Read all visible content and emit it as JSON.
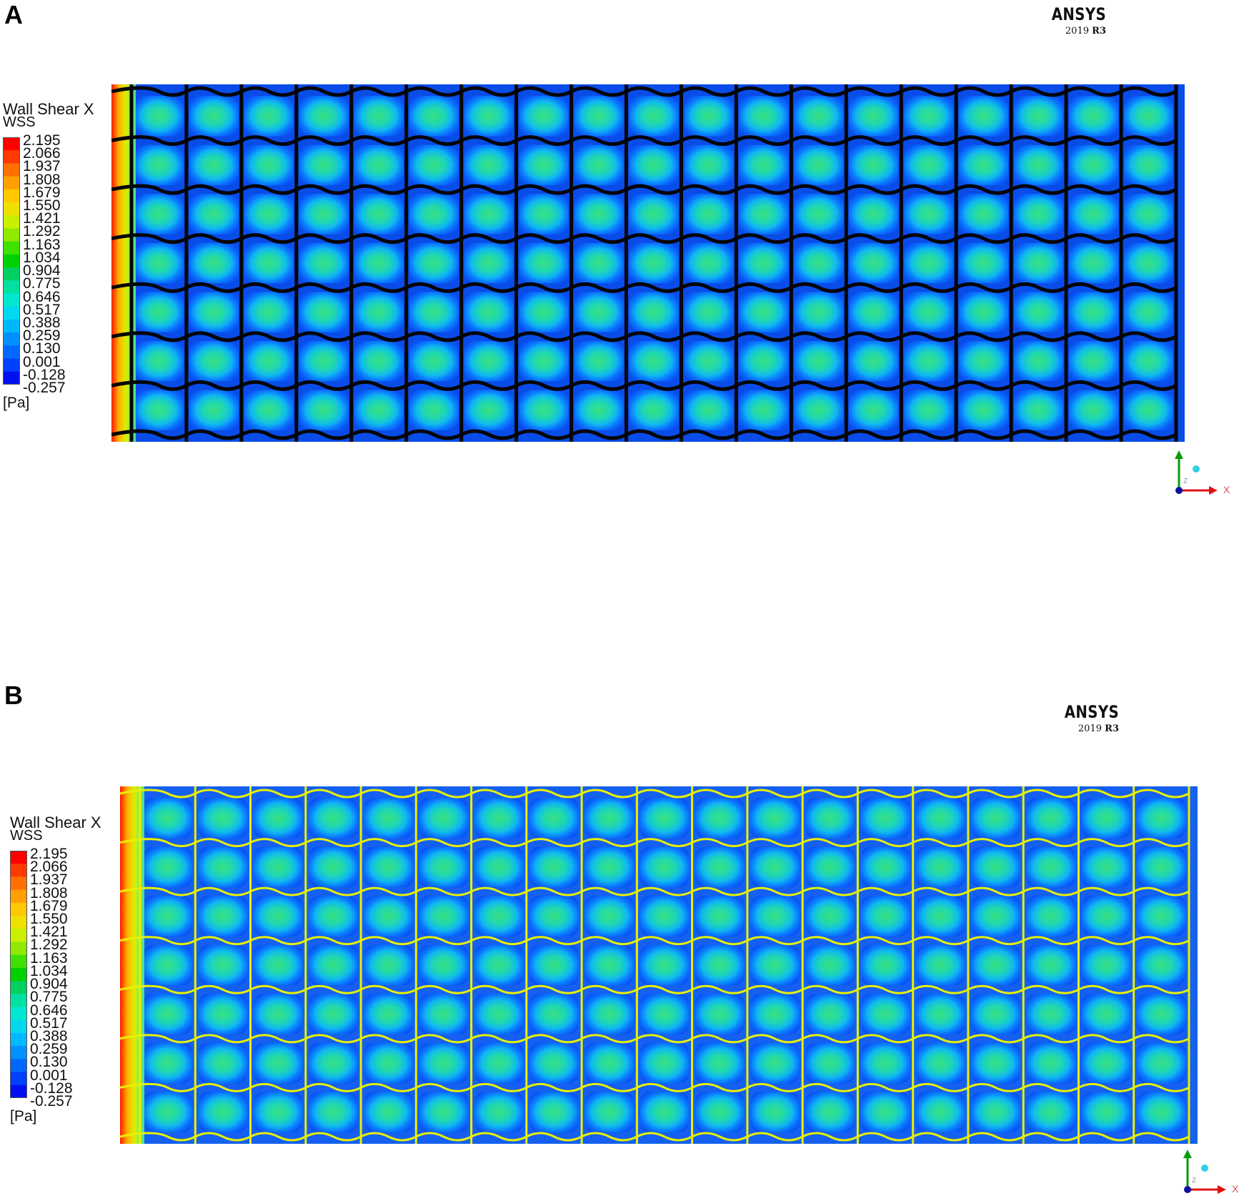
{
  "panels": [
    {
      "label": "A",
      "brand": {
        "name": "ANSYS",
        "version": "2019",
        "release": "R3"
      },
      "legend": {
        "title": "Wall Shear X",
        "variable": "WSS",
        "unit": "[Pa]"
      },
      "struts": "dark"
    },
    {
      "label": "B",
      "brand": {
        "name": "ANSYS",
        "version": "2019",
        "release": "R3"
      },
      "legend": {
        "title": "Wall Shear X",
        "variable": "WSS",
        "unit": "[Pa]"
      },
      "struts": "bright"
    }
  ],
  "legend_ticks": [
    "2.195",
    "2.066",
    "1.937",
    "1.808",
    "1.679",
    "1.550",
    "1.421",
    "1.292",
    "1.163",
    "1.034",
    "0.904",
    "0.775",
    "0.646",
    "0.517",
    "0.388",
    "0.259",
    "0.130",
    "0.001",
    "-0.128",
    "-0.257"
  ],
  "colormap": [
    "#ff0000",
    "#ff3a00",
    "#ff7000",
    "#ffa000",
    "#ffc800",
    "#f0e000",
    "#c8f000",
    "#90e800",
    "#40e000",
    "#00d000",
    "#00d060",
    "#00e0a0",
    "#00e8d0",
    "#00d8f0",
    "#00b8ff",
    "#0090ff",
    "#0068ff",
    "#0040ff",
    "#0010f0"
  ],
  "axis_labels": {
    "x": "X",
    "z": "Z"
  }
}
